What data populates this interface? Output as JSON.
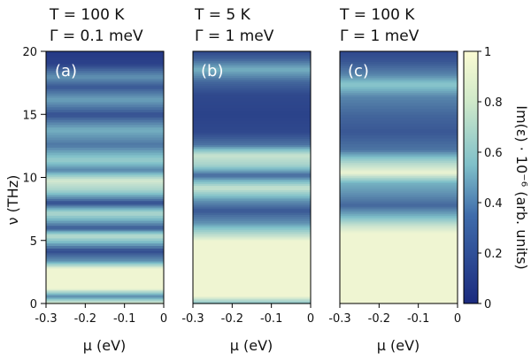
{
  "chart_data": {
    "type": "heatmap",
    "colormap": {
      "low": "#1b2a7e",
      "mid": "#7fc0c9",
      "high": "#fbfbd3"
    },
    "x_label": "μ (eV)",
    "y_label": "ν (THz)",
    "xlim": [
      -0.3,
      0
    ],
    "ylim": [
      0,
      20
    ],
    "x_ticks": [
      "-0.3",
      "-0.2",
      "-0.1",
      "0"
    ],
    "y_ticks": [
      "0",
      "5",
      "10",
      "15",
      "20"
    ],
    "colorbar": {
      "label": "Im(ε) · 10⁻⁶ (arb. units)",
      "range": [
        0,
        1
      ],
      "ticks": [
        "0",
        "0.2",
        "0.4",
        "0.6",
        "0.8",
        "1"
      ]
    },
    "panels": [
      {
        "label": "(a)",
        "title_line1": "T = 100 K",
        "title_line2": "Γ = 0.1 meV",
        "profile": [
          [
            0,
            0.95
          ],
          [
            0.6,
            0.3
          ],
          [
            1.2,
            0.95
          ],
          [
            2.8,
            0.95
          ],
          [
            3.4,
            0.35
          ],
          [
            4.2,
            0.1
          ],
          [
            5.4,
            0.75
          ],
          [
            6.0,
            0.15
          ],
          [
            7.2,
            0.7
          ],
          [
            8.0,
            0.1
          ],
          [
            9.0,
            0.65
          ],
          [
            9.8,
            0.85
          ],
          [
            10.6,
            0.3
          ],
          [
            11.4,
            0.6
          ],
          [
            12.6,
            0.25
          ],
          [
            13.8,
            0.45
          ],
          [
            15.0,
            0.12
          ],
          [
            16.2,
            0.4
          ],
          [
            17.2,
            0.15
          ],
          [
            18.0,
            0.35
          ],
          [
            19.0,
            0.08
          ],
          [
            20,
            0.05
          ]
        ]
      },
      {
        "label": "(b)",
        "title_line1": "T = 5 K",
        "title_line2": "Γ = 1 meV",
        "profile": [
          [
            0,
            0.5
          ],
          [
            0.6,
            0.95
          ],
          [
            5.0,
            0.95
          ],
          [
            5.6,
            0.7
          ],
          [
            6.4,
            0.35
          ],
          [
            7.4,
            0.15
          ],
          [
            8.2,
            0.35
          ],
          [
            9.2,
            0.8
          ],
          [
            10.2,
            0.2
          ],
          [
            11.0,
            0.65
          ],
          [
            11.8,
            0.8
          ],
          [
            12.6,
            0.25
          ],
          [
            13.6,
            0.1
          ],
          [
            15.0,
            0.08
          ],
          [
            16.6,
            0.1
          ],
          [
            17.6,
            0.2
          ],
          [
            18.6,
            0.45
          ],
          [
            19.4,
            0.2
          ],
          [
            20,
            0.1
          ]
        ]
      },
      {
        "label": "(c)",
        "title_line1": "T = 100 K",
        "title_line2": "Γ = 1 meV",
        "profile": [
          [
            0,
            0.95
          ],
          [
            5.6,
            0.95
          ],
          [
            6.2,
            0.8
          ],
          [
            7.0,
            0.45
          ],
          [
            7.8,
            0.2
          ],
          [
            8.8,
            0.35
          ],
          [
            9.6,
            0.45
          ],
          [
            10.4,
            0.95
          ],
          [
            11.2,
            0.7
          ],
          [
            12.2,
            0.25
          ],
          [
            13.6,
            0.15
          ],
          [
            15.0,
            0.2
          ],
          [
            16.4,
            0.3
          ],
          [
            17.4,
            0.55
          ],
          [
            18.2,
            0.3
          ],
          [
            19.2,
            0.15
          ],
          [
            20,
            0.1
          ]
        ]
      }
    ]
  }
}
